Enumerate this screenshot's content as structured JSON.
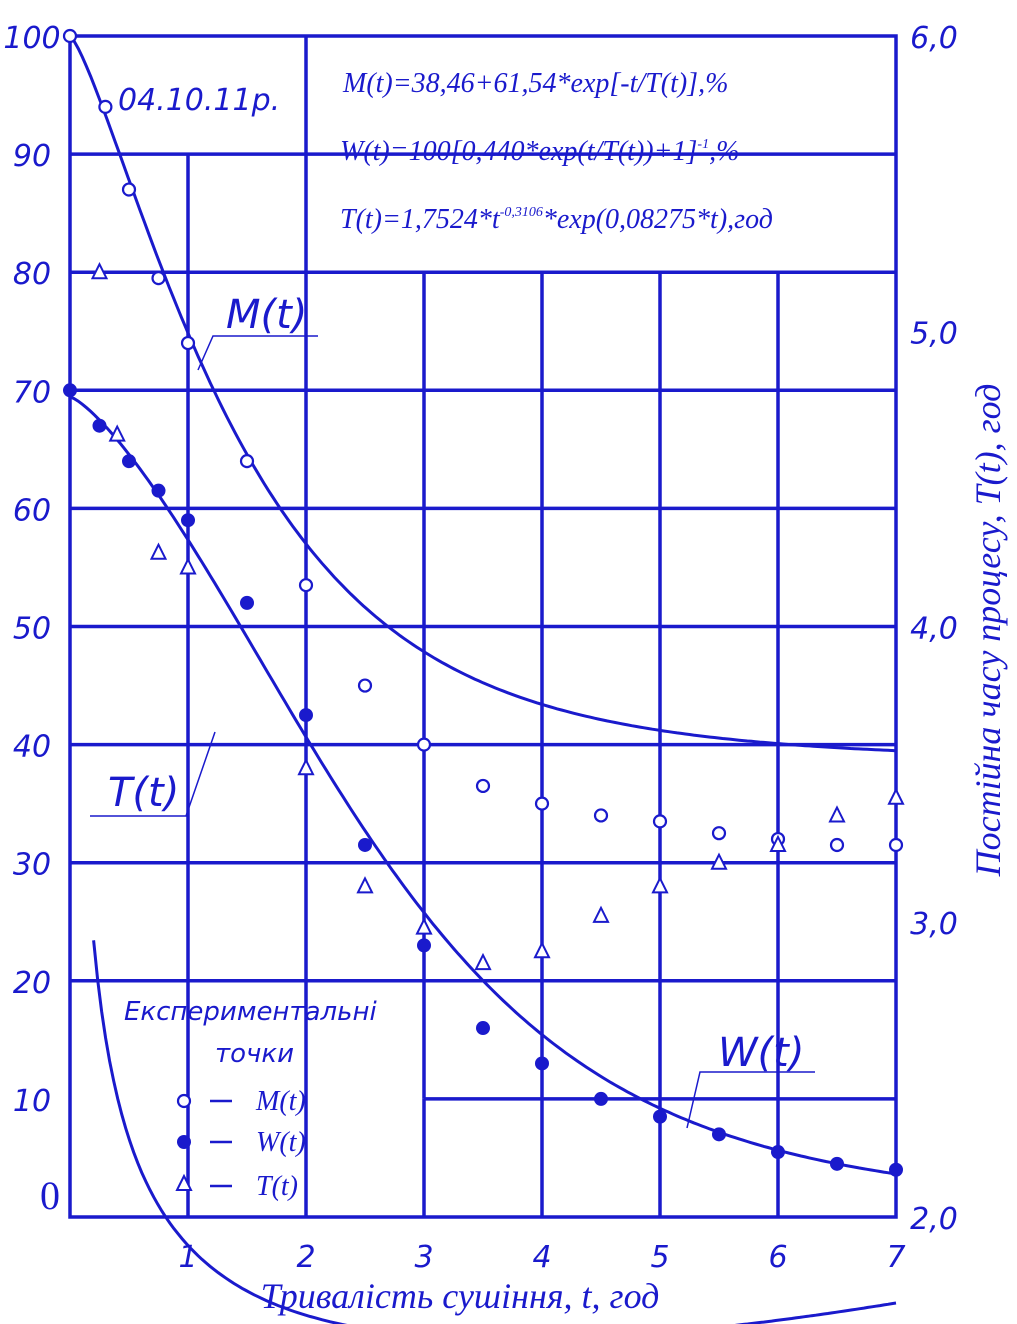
{
  "chart_data": {
    "type": "scatter",
    "xlabel": "Тривалість сушіння, t, год",
    "ylabel_right": "Постійна часу процесу, T(t), год",
    "xlim": [
      0,
      7
    ],
    "ylim_left": [
      0,
      100
    ],
    "ylim_right": [
      2.0,
      6.0
    ],
    "x_ticks": [
      "1",
      "2",
      "3",
      "4",
      "5",
      "6",
      "7"
    ],
    "y_ticks_left": [
      "100",
      "90",
      "80",
      "70",
      "60",
      "50",
      "40",
      "30",
      "20",
      "10",
      "0"
    ],
    "y_ticks_right": [
      "6,0",
      "5,0",
      "4,0",
      "3,0",
      "2,0"
    ],
    "grid": true,
    "date_label": "04.10.11р.",
    "formulas": [
      "M(t)=38,46+61,54*exp[-t/T(t)],%",
      "W(t)=100[0,440*exp(t/T(t))+1]",
      "T(t)=1,7524*t",
      "*exp(0,08275*t),год"
    ],
    "formula_sup_w": "-1",
    "formula_suffix_w": ",%",
    "formula_sup_t": "-0,3106",
    "legend_title": [
      "Експериментальні",
      "точки"
    ],
    "series": [
      {
        "name": "M(t)",
        "axis": "left",
        "marker": "open-circle",
        "points": [
          [
            0,
            100
          ],
          [
            0.3,
            94
          ],
          [
            0.5,
            87
          ],
          [
            0.75,
            79.5
          ],
          [
            1.0,
            74
          ],
          [
            1.5,
            64
          ],
          [
            2.0,
            53.5
          ],
          [
            2.5,
            45
          ],
          [
            3.0,
            40
          ],
          [
            3.5,
            36.5
          ],
          [
            4.0,
            35
          ],
          [
            4.5,
            34
          ],
          [
            5.0,
            33.5
          ],
          [
            5.5,
            32.5
          ],
          [
            6.0,
            32
          ],
          [
            6.5,
            31.5
          ],
          [
            7.0,
            31.5
          ]
        ]
      },
      {
        "name": "W(t)",
        "axis": "left",
        "marker": "filled-circle",
        "points": [
          [
            0,
            70
          ],
          [
            0.25,
            67
          ],
          [
            0.5,
            64
          ],
          [
            0.75,
            61.5
          ],
          [
            1.0,
            59
          ],
          [
            1.5,
            52
          ],
          [
            2.0,
            42.5
          ],
          [
            2.5,
            31.5
          ],
          [
            3.0,
            23
          ],
          [
            3.5,
            16
          ],
          [
            4.0,
            13
          ],
          [
            4.5,
            10
          ],
          [
            5.0,
            8.5
          ],
          [
            5.5,
            7
          ],
          [
            6.0,
            5.5
          ],
          [
            6.5,
            4.5
          ],
          [
            7.0,
            4
          ]
        ]
      },
      {
        "name": "T(t)",
        "axis": "right",
        "marker": "open-triangle",
        "points": [
          [
            0.25,
            5.2
          ],
          [
            0.4,
            4.65
          ],
          [
            0.75,
            4.25
          ],
          [
            1.0,
            4.2
          ],
          [
            2.0,
            3.52
          ],
          [
            2.5,
            3.12
          ],
          [
            3.0,
            2.98
          ],
          [
            3.5,
            2.86
          ],
          [
            4.0,
            2.9
          ],
          [
            4.5,
            3.02
          ],
          [
            5.0,
            3.12
          ],
          [
            5.5,
            3.2
          ],
          [
            6.0,
            3.26
          ],
          [
            6.5,
            3.36
          ],
          [
            7.0,
            3.42
          ]
        ]
      }
    ],
    "curve_labels": [
      "M(t)",
      "T(t)",
      "W(t)"
    ]
  }
}
